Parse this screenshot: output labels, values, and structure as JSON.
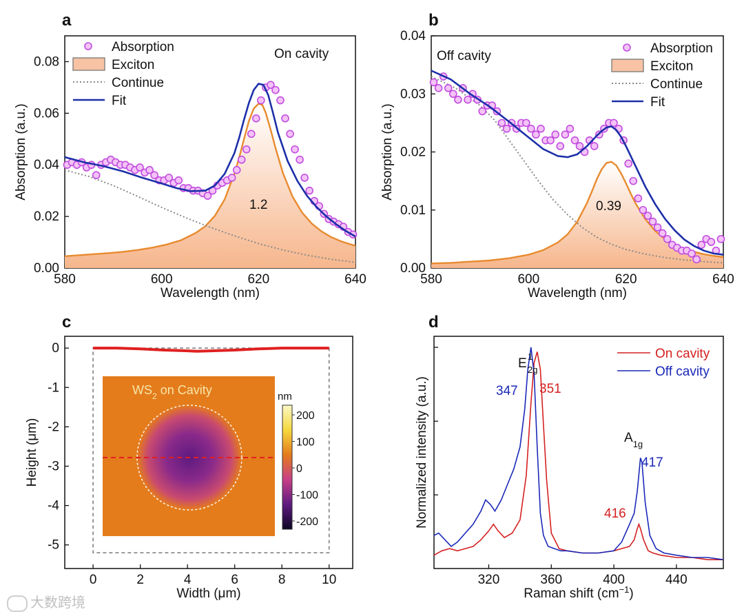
{
  "chart_data": [
    {
      "panel": "a",
      "type": "line",
      "annotation": "On cavity",
      "area_label": "1.2",
      "xlabel": "Wavelength (nm)",
      "ylabel": "Absorption (a.u.)",
      "xlim": [
        580,
        640
      ],
      "ylim": [
        0,
        0.09
      ],
      "xticks": [
        580,
        600,
        620,
        640
      ],
      "yticks": [
        0.0,
        0.02,
        0.04,
        0.06,
        0.08
      ],
      "xtick_labels": [
        "580",
        "600",
        "620",
        "640"
      ],
      "ytick_labels": [
        "0.00",
        "0.02",
        "0.04",
        "0.06",
        "0.08"
      ],
      "legend_position": "top-left",
      "legend": [
        "Absorption",
        "Exciton",
        "Continue",
        "Fit"
      ],
      "series": [
        {
          "name": "Absorption",
          "style": "circles",
          "color": "#c24ce0",
          "x": [
            580.5,
            581.5,
            582.5,
            583.5,
            584.5,
            585.5,
            586.5,
            587.5,
            588.5,
            589.5,
            590.5,
            591.5,
            592.5,
            593.5,
            594.5,
            595.5,
            596.5,
            597.5,
            598.5,
            599.5,
            600.5,
            601.5,
            602.5,
            603.5,
            604.5,
            605.5,
            606.5,
            607.5,
            608.5,
            609.5,
            610.5,
            611.5,
            612.5,
            613.5,
            614.5,
            615.5,
            616.5,
            617.5,
            618.5,
            619.5,
            620.5,
            621.5,
            622.5,
            623.5,
            624.5,
            625.5,
            626.5,
            627.5,
            628.5,
            629.5,
            630.5,
            631.5,
            632.5,
            633.5,
            634.5,
            635.5,
            636.5,
            637.5,
            638.5,
            639.5
          ],
          "y": [
            0.04,
            0.041,
            0.04,
            0.041,
            0.039,
            0.04,
            0.036,
            0.04,
            0.041,
            0.042,
            0.041,
            0.04,
            0.04,
            0.039,
            0.038,
            0.039,
            0.037,
            0.038,
            0.036,
            0.034,
            0.034,
            0.035,
            0.033,
            0.034,
            0.031,
            0.031,
            0.03,
            0.03,
            0.029,
            0.028,
            0.03,
            0.032,
            0.033,
            0.034,
            0.035,
            0.038,
            0.042,
            0.046,
            0.052,
            0.058,
            0.065,
            0.07,
            0.071,
            0.069,
            0.065,
            0.058,
            0.052,
            0.046,
            0.042,
            0.035,
            0.03,
            0.026,
            0.024,
            0.021,
            0.019,
            0.018,
            0.017,
            0.016,
            0.014,
            0.013
          ]
        },
        {
          "name": "Exciton",
          "style": "filled",
          "color": "#e88a2e",
          "fill": "#f6b68c",
          "x": [
            580,
            583,
            586,
            589,
            592,
            595,
            598,
            601,
            604,
            607,
            609,
            611,
            613,
            615,
            616,
            617,
            618,
            619,
            620,
            620.8,
            621.5,
            622.5,
            623.5,
            625,
            627,
            629,
            631,
            633,
            635,
            637,
            640
          ],
          "y": [
            0.0046,
            0.005,
            0.0054,
            0.0058,
            0.0063,
            0.007,
            0.0079,
            0.0091,
            0.0108,
            0.0136,
            0.0162,
            0.0203,
            0.0266,
            0.0365,
            0.0428,
            0.05,
            0.057,
            0.0618,
            0.0637,
            0.0632,
            0.06,
            0.0536,
            0.0466,
            0.037,
            0.0277,
            0.0215,
            0.0172,
            0.0142,
            0.012,
            0.0104,
            0.0086
          ]
        },
        {
          "name": "Continue",
          "style": "dotted",
          "color": "#888888",
          "x": [
            580,
            585,
            590,
            595,
            600,
            605,
            610,
            615,
            620,
            625,
            630,
            635,
            640
          ],
          "y": [
            0.038,
            0.0355,
            0.032,
            0.0278,
            0.0235,
            0.0195,
            0.0158,
            0.0125,
            0.0095,
            0.007,
            0.005,
            0.0034,
            0.0022
          ]
        },
        {
          "name": "Fit",
          "style": "solid",
          "color": "#1c2fa8",
          "x": [
            580,
            584,
            588,
            592,
            596,
            600,
            603,
            606,
            609,
            611,
            613,
            615,
            616,
            617,
            618,
            619,
            620,
            621,
            622,
            623,
            624,
            626,
            628,
            630,
            632,
            634,
            636,
            638,
            640
          ],
          "y": [
            0.043,
            0.041,
            0.0395,
            0.0375,
            0.035,
            0.0328,
            0.031,
            0.0298,
            0.03,
            0.032,
            0.0365,
            0.0445,
            0.0505,
            0.0575,
            0.064,
            0.069,
            0.0714,
            0.071,
            0.067,
            0.06,
            0.0525,
            0.0415,
            0.0338,
            0.028,
            0.0236,
            0.02,
            0.017,
            0.0144,
            0.0122
          ]
        }
      ]
    },
    {
      "panel": "b",
      "type": "line",
      "annotation": "Off cavity",
      "area_label": "0.39",
      "xlabel": "Wavelength (nm)",
      "ylabel": "Absorption (a.u.)",
      "xlim": [
        580,
        640
      ],
      "ylim": [
        0,
        0.04
      ],
      "xticks": [
        580,
        600,
        620,
        640
      ],
      "yticks": [
        0.0,
        0.01,
        0.02,
        0.03,
        0.04
      ],
      "xtick_labels": [
        "580",
        "600",
        "620",
        "640"
      ],
      "ytick_labels": [
        "0.00",
        "0.01",
        "0.02",
        "0.03",
        "0.04"
      ],
      "legend_position": "top-right",
      "legend": [
        "Absorption",
        "Exciton",
        "Continue",
        "Fit"
      ],
      "series": [
        {
          "name": "Absorption",
          "style": "circles",
          "color": "#c24ce0",
          "x": [
            580.5,
            581.5,
            582.5,
            583.5,
            584.5,
            585.5,
            586.5,
            587.5,
            588.5,
            589.5,
            590.5,
            591.5,
            592.5,
            593.5,
            594.5,
            595.5,
            596.5,
            597.5,
            598.5,
            599.5,
            600.5,
            601.5,
            602.5,
            603.5,
            604.5,
            605.5,
            606.5,
            607.5,
            608.5,
            609.5,
            610.5,
            611.5,
            612.5,
            613.5,
            614.5,
            615.5,
            616.5,
            617.5,
            618.5,
            619.5,
            620.5,
            621.5,
            622.5,
            623.5,
            624.5,
            625.5,
            626.5,
            627.5,
            628.5,
            629.5,
            630.5,
            631.5,
            632.5,
            633.5,
            634.5,
            635.5,
            636.5,
            637.5,
            638.5,
            639.5
          ],
          "y": [
            0.032,
            0.031,
            0.033,
            0.031,
            0.03,
            0.029,
            0.031,
            0.029,
            0.03,
            0.029,
            0.027,
            0.028,
            0.028,
            0.027,
            0.025,
            0.024,
            0.025,
            0.024,
            0.025,
            0.025,
            0.024,
            0.023,
            0.024,
            0.022,
            0.022,
            0.023,
            0.021,
            0.023,
            0.024,
            0.022,
            0.021,
            0.02,
            0.022,
            0.021,
            0.023,
            0.024,
            0.025,
            0.025,
            0.024,
            0.022,
            0.018,
            0.015,
            0.012,
            0.01,
            0.009,
            0.008,
            0.007,
            0.006,
            0.005,
            0.004,
            0.0035,
            0.003,
            0.003,
            0.0025,
            0.0015,
            0.004,
            0.005,
            0.0045,
            0.003,
            0.005
          ]
        },
        {
          "name": "Exciton",
          "style": "filled",
          "color": "#e88a2e",
          "fill": "#f6b68c",
          "x": [
            580,
            584,
            588,
            592,
            596,
            600,
            603,
            606,
            608,
            610,
            612,
            613,
            614,
            615,
            616,
            617,
            618,
            619,
            620,
            621,
            622,
            624,
            626,
            628,
            630,
            632,
            634,
            636,
            638,
            640
          ],
          "y": [
            0.0008,
            0.0009,
            0.0011,
            0.0013,
            0.0017,
            0.0023,
            0.0031,
            0.0044,
            0.0058,
            0.008,
            0.0112,
            0.0132,
            0.0153,
            0.017,
            0.0181,
            0.0183,
            0.0177,
            0.0163,
            0.0146,
            0.0128,
            0.0111,
            0.0084,
            0.0064,
            0.005,
            0.004,
            0.0033,
            0.0028,
            0.0024,
            0.0021,
            0.0019
          ]
        },
        {
          "name": "Continue",
          "style": "dotted",
          "color": "#888888",
          "x": [
            580,
            585,
            590,
            593,
            596,
            599,
            602,
            605,
            608,
            611,
            614,
            617,
            620,
            624,
            628,
            632,
            636,
            640
          ],
          "y": [
            0.033,
            0.031,
            0.028,
            0.0255,
            0.022,
            0.0185,
            0.015,
            0.0118,
            0.0092,
            0.007,
            0.0053,
            0.0041,
            0.0032,
            0.0024,
            0.0018,
            0.0014,
            0.0011,
            0.0009
          ]
        },
        {
          "name": "Fit",
          "style": "solid",
          "color": "#1c2fa8",
          "x": [
            580,
            584,
            588,
            592,
            596,
            600,
            603,
            606,
            608,
            610,
            612,
            614,
            615,
            616,
            617,
            618,
            619,
            620,
            622,
            624,
            626,
            628,
            630,
            632,
            634,
            636,
            638,
            640
          ],
          "y": [
            0.034,
            0.0325,
            0.03,
            0.0278,
            0.0252,
            0.0225,
            0.0205,
            0.0193,
            0.0191,
            0.0196,
            0.021,
            0.0228,
            0.0236,
            0.0242,
            0.0244,
            0.0238,
            0.0226,
            0.021,
            0.0175,
            0.014,
            0.011,
            0.0085,
            0.0065,
            0.0049,
            0.0038,
            0.003,
            0.0025,
            0.0023
          ]
        }
      ]
    },
    {
      "panel": "c",
      "type": "line",
      "xlabel": "Width (μm)",
      "ylabel": "Height (μm)",
      "xlim": [
        -1.2,
        11
      ],
      "ylim": [
        -5.6,
        0.3
      ],
      "xticks": [
        0,
        2,
        4,
        6,
        8,
        10
      ],
      "yticks": [
        0,
        -1,
        -2,
        -3,
        -4,
        -5
      ],
      "xtick_labels": [
        "0",
        "2",
        "4",
        "6",
        "8",
        "10"
      ],
      "ytick_labels": [
        "0",
        "-1",
        "-2",
        "-3",
        "-4",
        "-5"
      ],
      "inset": {
        "title_main": "WS",
        "title_sub": "2",
        "title_tail": " on Cavity",
        "colorbar_unit": "nm",
        "colorbar_ticks": [
          "200",
          "100",
          "0",
          "-100",
          "-200"
        ],
        "colors": [
          "#fbf8c4",
          "#f5d840",
          "#e47c1c",
          "#c84088",
          "#5e1a80",
          "#0c0524"
        ]
      },
      "series": [
        {
          "name": "height profile",
          "style": "solid",
          "color": "#e02020",
          "x": [
            0,
            1,
            2,
            3,
            4,
            4.4,
            5,
            6,
            7,
            8,
            9,
            10
          ],
          "y": [
            0.0,
            0.0,
            -0.02,
            -0.05,
            -0.07,
            -0.08,
            -0.07,
            -0.05,
            -0.02,
            0.0,
            0.0,
            0.0
          ]
        }
      ]
    },
    {
      "panel": "d",
      "type": "line",
      "xlabel": "Raman shift (cm",
      "xlabel_sup": "−1",
      "xlabel_tail": ")",
      "ylabel": "Normalized intensity (a.u.)",
      "xlim": [
        285,
        470
      ],
      "ylim": [
        0,
        1.05
      ],
      "xticks": [
        320,
        360,
        400,
        440
      ],
      "xtick_labels": [
        "320",
        "360",
        "400",
        "440"
      ],
      "legend_position": "top-right",
      "legend": [
        "On cavity",
        "Off cavity"
      ],
      "annotations": {
        "e2g_main": "E",
        "e2g_sup": "1",
        "e2g_sub": "2g",
        "a1g_main": "A",
        "a1g_sub": "1g",
        "off_e2g": "347",
        "on_e2g": "351",
        "on_a1g": "416",
        "off_a1g": "417"
      },
      "series": [
        {
          "name": "On cavity",
          "color": "#d42020",
          "x": [
            285,
            290,
            295,
            300,
            305,
            310,
            315,
            320,
            323,
            326,
            330,
            335,
            340,
            344,
            347,
            349,
            351,
            353,
            355,
            357,
            360,
            365,
            370,
            380,
            390,
            400,
            405,
            410,
            413,
            415,
            416,
            417,
            419,
            422,
            425,
            430,
            440,
            450,
            460,
            470
          ],
          "y": [
            0.06,
            0.08,
            0.09,
            0.08,
            0.09,
            0.1,
            0.13,
            0.17,
            0.2,
            0.17,
            0.14,
            0.16,
            0.22,
            0.42,
            0.75,
            0.93,
            0.98,
            0.9,
            0.65,
            0.4,
            0.16,
            0.09,
            0.08,
            0.07,
            0.07,
            0.08,
            0.09,
            0.1,
            0.13,
            0.18,
            0.2,
            0.18,
            0.13,
            0.08,
            0.07,
            0.06,
            0.05,
            0.05,
            0.04,
            0.04
          ]
        },
        {
          "name": "Off cavity",
          "color": "#1a28b8",
          "x": [
            285,
            288,
            292,
            296,
            300,
            305,
            310,
            315,
            318,
            321,
            324,
            328,
            332,
            336,
            340,
            343,
            345,
            347,
            349,
            351,
            353,
            355,
            358,
            362,
            366,
            370,
            380,
            390,
            400,
            405,
            410,
            413,
            415,
            417,
            418,
            420,
            423,
            427,
            432,
            440,
            450,
            460,
            470
          ],
          "y": [
            0.15,
            0.16,
            0.13,
            0.1,
            0.12,
            0.16,
            0.2,
            0.26,
            0.31,
            0.29,
            0.26,
            0.31,
            0.38,
            0.45,
            0.55,
            0.72,
            0.9,
            1.0,
            0.88,
            0.55,
            0.25,
            0.15,
            0.1,
            0.09,
            0.08,
            0.08,
            0.07,
            0.07,
            0.08,
            0.12,
            0.2,
            0.25,
            0.35,
            0.5,
            0.48,
            0.3,
            0.15,
            0.09,
            0.07,
            0.06,
            0.05,
            0.05,
            0.04
          ]
        }
      ]
    }
  ],
  "panel_labels": [
    "a",
    "b",
    "c",
    "d"
  ],
  "watermark": "大数跨境"
}
